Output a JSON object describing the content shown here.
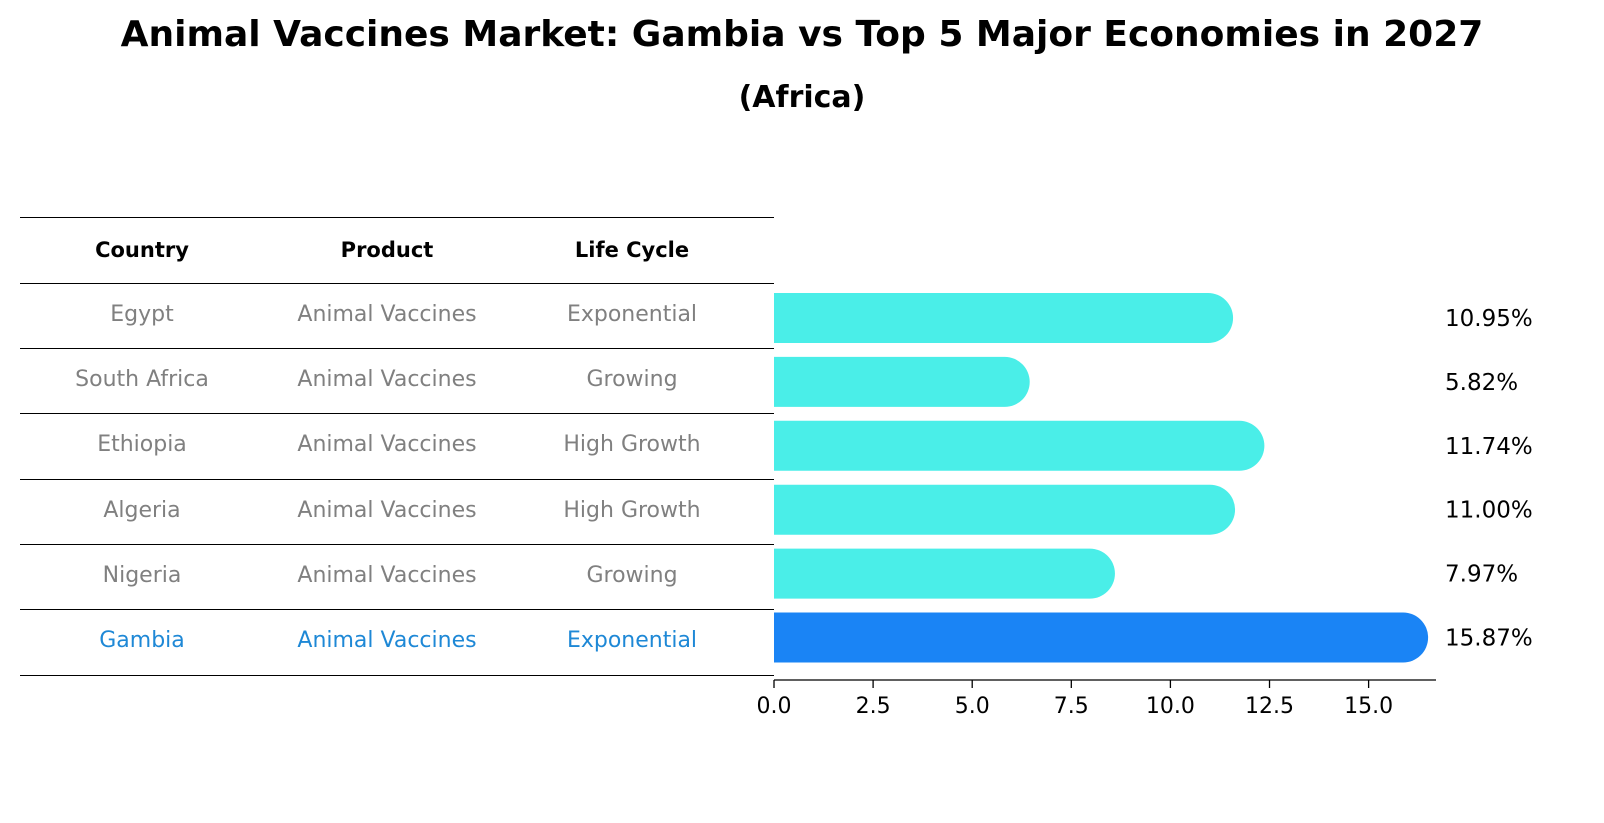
{
  "title": "Animal Vaccines Market: Gambia vs Top 5 Major Economies in 2027",
  "subtitle": "(Africa)",
  "table": {
    "headers": [
      "Country",
      "Product",
      "Life Cycle"
    ],
    "rows": [
      {
        "country": "Egypt",
        "product": "Animal Vaccines",
        "life_cycle": "Exponential"
      },
      {
        "country": "South Africa",
        "product": "Animal Vaccines",
        "life_cycle": "Growing"
      },
      {
        "country": "Ethiopia",
        "product": "Animal Vaccines",
        "life_cycle": "High Growth"
      },
      {
        "country": "Algeria",
        "product": "Animal Vaccines",
        "life_cycle": "High Growth"
      },
      {
        "country": "Nigeria",
        "product": "Animal Vaccines",
        "life_cycle": "Growing"
      },
      {
        "country": "Gambia",
        "product": "Animal Vaccines",
        "life_cycle": "Exponential"
      }
    ]
  },
  "chart_data": {
    "type": "bar",
    "orientation": "horizontal",
    "categories": [
      "Egypt",
      "South Africa",
      "Ethiopia",
      "Algeria",
      "Nigeria",
      "Gambia"
    ],
    "values": [
      10.95,
      5.82,
      11.74,
      11.0,
      7.97,
      15.87
    ],
    "data_labels": [
      "10.95%",
      "5.82%",
      "11.74%",
      "11.00%",
      "7.97%",
      "15.87%"
    ],
    "highlight": "Gambia",
    "xlim": [
      0,
      16.7
    ],
    "xticks": [
      0.0,
      2.5,
      5.0,
      7.5,
      10.0,
      12.5,
      15.0
    ],
    "xtick_labels": [
      "0.0",
      "2.5",
      "5.0",
      "7.5",
      "10.0",
      "12.5",
      "15.0"
    ],
    "colors": {
      "default": "#4aeee8",
      "highlight": "#1a84f5"
    }
  }
}
